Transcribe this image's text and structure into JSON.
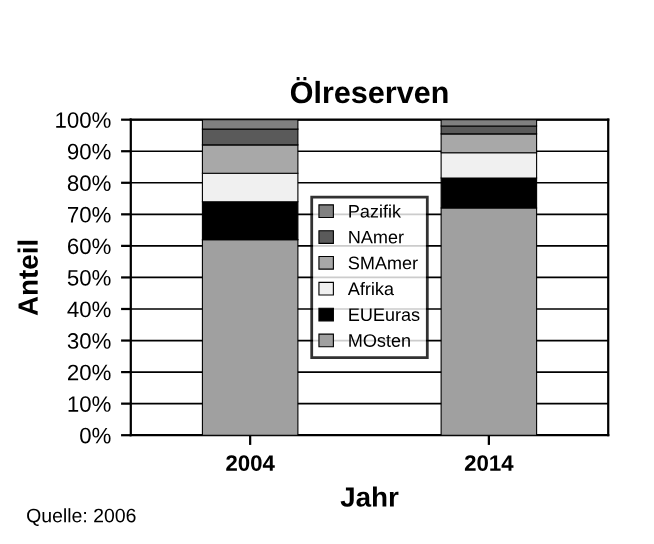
{
  "chart_data": {
    "type": "bar",
    "title": "Ölreserven",
    "xlabel": "Jahr",
    "ylabel": "Anteil",
    "categories": [
      "2004",
      "2014"
    ],
    "stacked": true,
    "series": [
      {
        "name": "MOsten",
        "color": "#a0a0a0",
        "values": [
          62,
          72
        ]
      },
      {
        "name": "EUEuras",
        "color": "#000000",
        "values": [
          12,
          9.5
        ]
      },
      {
        "name": "Afrika",
        "color": "#f0f0f0",
        "values": [
          9,
          8
        ]
      },
      {
        "name": "SMAmer",
        "color": "#a8a8a8",
        "values": [
          9,
          6
        ]
      },
      {
        "name": "NAmer",
        "color": "#5a5a5a",
        "values": [
          5,
          2.5
        ]
      },
      {
        "name": "Pazifik",
        "color": "#808080",
        "values": [
          3,
          2
        ]
      }
    ],
    "ylim": [
      0,
      100
    ],
    "yticks": [
      {
        "value": 0,
        "label": "0%"
      },
      {
        "value": 10,
        "label": "10%"
      },
      {
        "value": 20,
        "label": "20%"
      },
      {
        "value": 30,
        "label": "30%"
      },
      {
        "value": 40,
        "label": "40%"
      },
      {
        "value": 50,
        "label": "50%"
      },
      {
        "value": 60,
        "label": "60%"
      },
      {
        "value": 70,
        "label": "70%"
      },
      {
        "value": 80,
        "label": "80%"
      },
      {
        "value": 90,
        "label": "90%"
      },
      {
        "value": 100,
        "label": "100%"
      }
    ],
    "grid": "y",
    "legend": "center",
    "annotations": [
      "Quelle: 2006"
    ]
  }
}
